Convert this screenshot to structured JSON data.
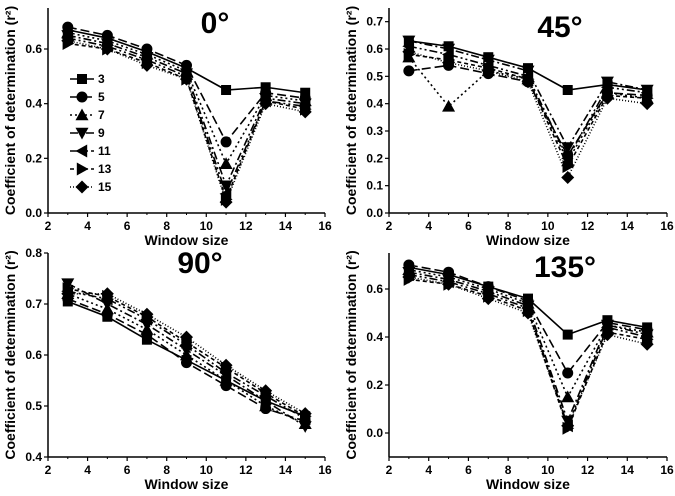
{
  "chart_data": [
    {
      "type": "line",
      "title": "0°",
      "xlabel": "Window size",
      "ylabel": "Coefficient of determination (r²)",
      "x": [
        3,
        5,
        7,
        9,
        11,
        13,
        15
      ],
      "xlim": [
        2,
        16
      ],
      "xticks": [
        "2",
        "4",
        "6",
        "8",
        "10",
        "12",
        "14",
        "16"
      ],
      "ylim": [
        0,
        0.75
      ],
      "yticks": [
        "0.0",
        "0.2",
        "0.4",
        "0.6"
      ],
      "legend_position": "center-left",
      "series": [
        {
          "name": "3",
          "values": [
            0.67,
            0.64,
            0.59,
            0.53,
            0.45,
            0.46,
            0.44
          ]
        },
        {
          "name": "5",
          "values": [
            0.68,
            0.65,
            0.6,
            0.54,
            0.26,
            0.44,
            0.42
          ]
        },
        {
          "name": "7",
          "values": [
            0.66,
            0.63,
            0.58,
            0.52,
            0.18,
            0.43,
            0.41
          ]
        },
        {
          "name": "9",
          "values": [
            0.65,
            0.62,
            0.57,
            0.51,
            0.1,
            0.42,
            0.4
          ]
        },
        {
          "name": "11",
          "values": [
            0.64,
            0.61,
            0.56,
            0.5,
            0.07,
            0.41,
            0.39
          ]
        },
        {
          "name": "13",
          "values": [
            0.62,
            0.6,
            0.55,
            0.49,
            0.05,
            0.41,
            0.38
          ]
        },
        {
          "name": "15",
          "values": [
            0.63,
            0.6,
            0.54,
            0.49,
            0.04,
            0.4,
            0.37
          ]
        }
      ]
    },
    {
      "type": "line",
      "title": "45°",
      "xlabel": "Window size",
      "ylabel": "Coefficient of determination (r²)",
      "x": [
        3,
        5,
        7,
        9,
        11,
        13,
        15
      ],
      "xlim": [
        2,
        16
      ],
      "xticks": [
        "2",
        "4",
        "6",
        "8",
        "10",
        "12",
        "14",
        "16"
      ],
      "ylim": [
        0,
        0.75
      ],
      "yticks": [
        "0.0",
        "0.1",
        "0.2",
        "0.3",
        "0.4",
        "0.5",
        "0.6",
        "0.7"
      ],
      "series": [
        {
          "name": "3",
          "values": [
            0.63,
            0.61,
            0.57,
            0.53,
            0.45,
            0.47,
            0.45
          ]
        },
        {
          "name": "5",
          "values": [
            0.52,
            0.54,
            0.51,
            0.48,
            0.21,
            0.44,
            0.43
          ]
        },
        {
          "name": "7",
          "values": [
            0.57,
            0.39,
            0.52,
            0.49,
            0.19,
            0.44,
            0.42
          ]
        },
        {
          "name": "9",
          "values": [
            0.63,
            0.6,
            0.56,
            0.52,
            0.24,
            0.48,
            0.45
          ]
        },
        {
          "name": "11",
          "values": [
            0.61,
            0.58,
            0.54,
            0.5,
            0.2,
            0.46,
            0.44
          ]
        },
        {
          "name": "13",
          "values": [
            0.58,
            0.56,
            0.53,
            0.49,
            0.17,
            0.43,
            0.42
          ]
        },
        {
          "name": "15",
          "values": [
            0.59,
            0.55,
            0.52,
            0.48,
            0.13,
            0.42,
            0.4
          ]
        }
      ]
    },
    {
      "type": "line",
      "title": "90°",
      "xlabel": "Window size",
      "ylabel": "Coefficient of determination (r²)",
      "x": [
        3,
        5,
        7,
        9,
        11,
        13,
        15
      ],
      "xlim": [
        2,
        16
      ],
      "xticks": [
        "2",
        "4",
        "6",
        "8",
        "10",
        "12",
        "14",
        "16"
      ],
      "ylim": [
        0.4,
        0.8
      ],
      "yticks": [
        "0.4",
        "0.5",
        "0.6",
        "0.7",
        "0.8"
      ],
      "series": [
        {
          "name": "3",
          "values": [
            0.705,
            0.675,
            0.63,
            0.59,
            0.55,
            0.51,
            0.48
          ]
        },
        {
          "name": "5",
          "values": [
            0.71,
            0.68,
            0.64,
            0.585,
            0.54,
            0.495,
            0.47
          ]
        },
        {
          "name": "7",
          "values": [
            0.72,
            0.69,
            0.65,
            0.6,
            0.55,
            0.5,
            0.465
          ]
        },
        {
          "name": "9",
          "values": [
            0.74,
            0.7,
            0.66,
            0.61,
            0.56,
            0.51,
            0.46
          ]
        },
        {
          "name": "11",
          "values": [
            0.725,
            0.71,
            0.67,
            0.62,
            0.565,
            0.52,
            0.475
          ]
        },
        {
          "name": "13",
          "values": [
            0.73,
            0.715,
            0.675,
            0.625,
            0.575,
            0.525,
            0.48
          ]
        },
        {
          "name": "15",
          "values": [
            0.72,
            0.72,
            0.68,
            0.635,
            0.58,
            0.53,
            0.485
          ]
        }
      ]
    },
    {
      "type": "line",
      "title": "135°",
      "xlabel": "Window size",
      "ylabel": "Coefficient of determination (r²)",
      "x": [
        3,
        5,
        7,
        9,
        11,
        13,
        15
      ],
      "xlim": [
        2,
        16
      ],
      "xticks": [
        "2",
        "4",
        "6",
        "8",
        "10",
        "12",
        "14",
        "16"
      ],
      "ylim": [
        -0.1,
        0.75
      ],
      "yticks": [
        "0.0",
        "0.2",
        "0.4",
        "0.6"
      ],
      "series": [
        {
          "name": "3",
          "values": [
            0.69,
            0.66,
            0.61,
            0.56,
            0.41,
            0.47,
            0.44
          ]
        },
        {
          "name": "5",
          "values": [
            0.7,
            0.67,
            0.61,
            0.55,
            0.25,
            0.46,
            0.43
          ]
        },
        {
          "name": "7",
          "values": [
            0.68,
            0.65,
            0.6,
            0.54,
            0.15,
            0.45,
            0.42
          ]
        },
        {
          "name": "9",
          "values": [
            0.67,
            0.64,
            0.59,
            0.53,
            0.05,
            0.45,
            0.41
          ]
        },
        {
          "name": "11",
          "values": [
            0.66,
            0.63,
            0.58,
            0.52,
            0.03,
            0.44,
            0.4
          ]
        },
        {
          "name": "13",
          "values": [
            0.64,
            0.62,
            0.57,
            0.51,
            0.02,
            0.42,
            0.39
          ]
        },
        {
          "name": "15",
          "values": [
            0.65,
            0.62,
            0.56,
            0.5,
            0.03,
            0.41,
            0.37
          ]
        }
      ]
    }
  ]
}
